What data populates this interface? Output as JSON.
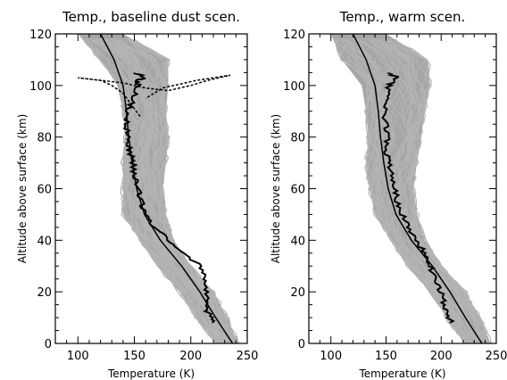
{
  "chart_data": [
    {
      "type": "line",
      "title": "Temp., baseline dust scen.",
      "xlabel": "Temperature (K)",
      "ylabel": "Altitude above surface (km)",
      "xlim": [
        80,
        250
      ],
      "ylim": [
        0,
        120
      ],
      "xticks": [
        100,
        150,
        200,
        250
      ],
      "yticks": [
        0,
        20,
        40,
        60,
        80,
        100,
        120
      ],
      "envelope": {
        "color": "#a6a6a6",
        "description_series": "ensemble of simulated profiles",
        "lower": [
          [
            222,
            0
          ],
          [
            205,
            10
          ],
          [
            190,
            20
          ],
          [
            170,
            30
          ],
          [
            155,
            40
          ],
          [
            140,
            50
          ],
          [
            140,
            60
          ],
          [
            140,
            70
          ],
          [
            142,
            80
          ],
          [
            140,
            90
          ],
          [
            135,
            100
          ],
          [
            120,
            110
          ],
          [
            100,
            120
          ]
        ],
        "upper": [
          [
            242,
            0
          ],
          [
            232,
            10
          ],
          [
            220,
            20
          ],
          [
            200,
            30
          ],
          [
            185,
            40
          ],
          [
            178,
            50
          ],
          [
            175,
            60
          ],
          [
            178,
            70
          ],
          [
            180,
            80
          ],
          [
            178,
            90
          ],
          [
            180,
            100
          ],
          [
            180,
            110
          ],
          [
            140,
            120
          ]
        ]
      },
      "series": [
        {
          "style": "solid-thin",
          "color": "#000000",
          "points": [
            [
              237,
              0
            ],
            [
              222,
              10
            ],
            [
              208,
              20
            ],
            [
              192,
              30
            ],
            [
              173,
              40
            ],
            [
              159,
              50
            ],
            [
              152,
              60
            ],
            [
              148,
              70
            ],
            [
              145,
              80
            ],
            [
              143,
              90
            ],
            [
              140,
              100
            ],
            [
              132,
              110
            ],
            [
              120,
              120
            ]
          ]
        },
        {
          "style": "solid-noisy",
          "color": "#000000",
          "points": [
            [
              220,
              8
            ],
            [
              215,
              12
            ],
            [
              214,
              15
            ],
            [
              213,
              20
            ],
            [
              212,
              25
            ],
            [
              208,
              30
            ],
            [
              195,
              35
            ],
            [
              180,
              40
            ],
            [
              168,
              45
            ],
            [
              160,
              50
            ],
            [
              156,
              55
            ],
            [
              153,
              60
            ],
            [
              150,
              65
            ],
            [
              149,
              70
            ],
            [
              146,
              75
            ],
            [
              144,
              80
            ],
            [
              143,
              85
            ],
            [
              144,
              90
            ],
            [
              150,
              95
            ],
            [
              153,
              100
            ],
            [
              152,
              102
            ],
            [
              160,
              103
            ],
            [
              150,
              105
            ]
          ]
        },
        {
          "style": "dashed",
          "color": "#000000",
          "points": [
            [
              155,
              88
            ],
            [
              150,
              91
            ],
            [
              145,
              94
            ],
            [
              140,
              97
            ],
            [
              130,
              100
            ],
            [
              120,
              102
            ],
            [
              100,
              103
            ],
            [
              140,
              101
            ],
            [
              160,
              99
            ],
            [
              180,
              98
            ],
            [
              200,
              100
            ],
            [
              215,
              102
            ],
            [
              235,
              104
            ],
            [
              205,
              102
            ],
            [
              175,
              99
            ],
            [
              160,
              95
            ]
          ]
        }
      ]
    },
    {
      "type": "line",
      "title": "Temp., warm scen.",
      "xlabel": "Temperature (K)",
      "ylabel": "Altitude above surface (km)",
      "xlim": [
        80,
        250
      ],
      "ylim": [
        0,
        120
      ],
      "xticks": [
        100,
        150,
        200,
        250
      ],
      "yticks": [
        0,
        20,
        40,
        60,
        80,
        100,
        120
      ],
      "envelope": {
        "color": "#a6a6a6",
        "lower": [
          [
            222,
            0
          ],
          [
            205,
            10
          ],
          [
            190,
            20
          ],
          [
            170,
            30
          ],
          [
            155,
            40
          ],
          [
            140,
            50
          ],
          [
            135,
            60
          ],
          [
            132,
            70
          ],
          [
            134,
            80
          ],
          [
            132,
            90
          ],
          [
            128,
            100
          ],
          [
            110,
            110
          ],
          [
            100,
            120
          ]
        ],
        "upper": [
          [
            245,
            0
          ],
          [
            235,
            10
          ],
          [
            222,
            20
          ],
          [
            200,
            30
          ],
          [
            185,
            40
          ],
          [
            178,
            50
          ],
          [
            175,
            60
          ],
          [
            178,
            70
          ],
          [
            182,
            80
          ],
          [
            185,
            90
          ],
          [
            190,
            100
          ],
          [
            188,
            110
          ],
          [
            150,
            120
          ]
        ]
      },
      "series": [
        {
          "style": "solid-thin",
          "color": "#000000",
          "points": [
            [
              237,
              0
            ],
            [
              222,
              10
            ],
            [
              208,
              20
            ],
            [
              192,
              30
            ],
            [
              173,
              40
            ],
            [
              159,
              50
            ],
            [
              152,
              60
            ],
            [
              148,
              70
            ],
            [
              145,
              80
            ],
            [
              143,
              90
            ],
            [
              140,
              100
            ],
            [
              132,
              110
            ],
            [
              120,
              120
            ]
          ]
        },
        {
          "style": "solid-noisy",
          "color": "#000000",
          "points": [
            [
              210,
              8
            ],
            [
              205,
              12
            ],
            [
              203,
              15
            ],
            [
              200,
              20
            ],
            [
              195,
              25
            ],
            [
              190,
              30
            ],
            [
              185,
              35
            ],
            [
              178,
              40
            ],
            [
              170,
              45
            ],
            [
              165,
              50
            ],
            [
              160,
              55
            ],
            [
              158,
              60
            ],
            [
              155,
              65
            ],
            [
              152,
              70
            ],
            [
              150,
              75
            ],
            [
              151,
              80
            ],
            [
              150,
              85
            ],
            [
              148,
              90
            ],
            [
              150,
              95
            ],
            [
              153,
              100
            ],
            [
              160,
              103
            ],
            [
              152,
              105
            ]
          ]
        }
      ]
    }
  ]
}
